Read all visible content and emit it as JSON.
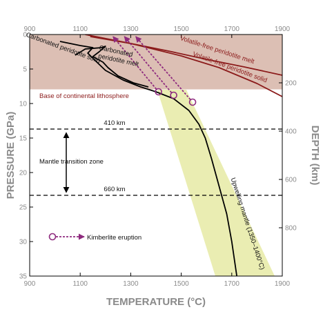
{
  "chart_data": {
    "type": "line",
    "xlabel": "TEMPERATURE (°C)",
    "ylabel": "PRESSURE (GPa)",
    "y2label": "DEPTH (km)",
    "xlim": [
      900,
      1900
    ],
    "ylim": [
      0,
      35
    ],
    "y2lim": [
      0,
      1000
    ],
    "x_ticks": [
      900,
      1100,
      1300,
      1500,
      1700,
      1900
    ],
    "x_top_ticks": [
      900,
      1100,
      1300,
      1500,
      1700,
      1900
    ],
    "y_ticks": [
      0,
      5,
      10,
      15,
      20,
      25,
      30,
      35
    ],
    "y2_ticks": [
      200,
      400,
      600,
      800
    ],
    "grid": false,
    "colors": {
      "lithosphere_fill": "#dcbfb4",
      "lithosphere_edge": "#ffffff",
      "upwelling_band": "#eaedb2",
      "dark_red": "#8b1a1a",
      "eruption": "#8e2a7e",
      "black": "#000000",
      "tick_gray": "#8a8a8a"
    },
    "lithosphere_base_pressure": 8,
    "lithosphere_label": "Base of continental lithosphere",
    "series": [
      {
        "name": "Volatile-free peridotite melt",
        "color": "#8b1a1a",
        "x": [
          1140,
          1300,
          1450,
          1600,
          1750,
          1900
        ],
        "y": [
          0.3,
          1.3,
          2.4,
          3.6,
          4.7,
          5.9
        ]
      },
      {
        "name": "Volatile-free peridotite solid",
        "color": "#8b1a1a",
        "x": [
          1120,
          1300,
          1500,
          1650,
          1800,
          1900
        ],
        "y": [
          0,
          1.3,
          3.1,
          4.8,
          7.1,
          9.0
        ]
      },
      {
        "name": "Carbonated peridotite melt",
        "color": "#000000",
        "x": [
          1080,
          1120,
          1185,
          1200,
          1175,
          1150,
          1190,
          1210,
          1250,
          1310,
          1370
        ],
        "y": [
          3.0,
          2.1,
          1.9,
          1.7,
          2.5,
          3.2,
          4.0,
          4.8,
          6.0,
          7.0,
          7.6
        ]
      },
      {
        "name": "Carbonated peridotite solid",
        "color": "#000000",
        "x": [
          1020,
          1060,
          1100,
          1150,
          1130,
          1160,
          1200,
          1270,
          1340,
          1400,
          1470,
          1530,
          1570,
          1595,
          1620,
          1650,
          1680,
          1700,
          1720
        ],
        "y": [
          1.0,
          1.3,
          1.6,
          1.9,
          2.7,
          3.8,
          5.2,
          6.6,
          7.6,
          8.3,
          9.3,
          11.0,
          13.0,
          15.0,
          18.0,
          22.0,
          26.0,
          30.0,
          35.0
        ]
      }
    ],
    "upwelling_band": {
      "label": "Upwelling mantle (1350–1400°C)",
      "polygon": [
        [
          1405,
          8
        ],
        [
          1520,
          8
        ],
        [
          1870,
          35
        ],
        [
          1635,
          35
        ]
      ]
    },
    "transition_zone": {
      "label": "Mantle transition zone",
      "lines": [
        {
          "label": "410 km",
          "pressure": 13.7
        },
        {
          "label": "660 km",
          "pressure": 23.3
        }
      ]
    },
    "kimberlite": {
      "label": "Kimberlite eruption",
      "paths": [
        {
          "from": [
            1410,
            8.3
          ],
          "to": [
            1230,
            0.3
          ]
        },
        {
          "from": [
            1470,
            8.8
          ],
          "to": [
            1275,
            0.3
          ]
        },
        {
          "from": [
            1545,
            9.8
          ],
          "to": [
            1320,
            0.3
          ]
        }
      ]
    },
    "annotations": [
      {
        "text": "Volatile-free peridotite melt",
        "x": 1640,
        "y": 2.5,
        "angle": 18,
        "color": "dark_red"
      },
      {
        "text": "Volatile-free peridotite solid",
        "x": 1690,
        "y": 5.0,
        "angle": 20,
        "color": "dark_red"
      },
      {
        "text": "Carbonated",
        "x": 1240,
        "y": 2.7,
        "angle": 12,
        "color": "black"
      },
      {
        "text": "peridotite melt",
        "x": 1250,
        "y": 4.0,
        "angle": 12,
        "color": "black"
      },
      {
        "text": "Carbonated peridotite solid",
        "x": 1030,
        "y": 2.2,
        "angle": 20,
        "color": "black"
      }
    ]
  }
}
